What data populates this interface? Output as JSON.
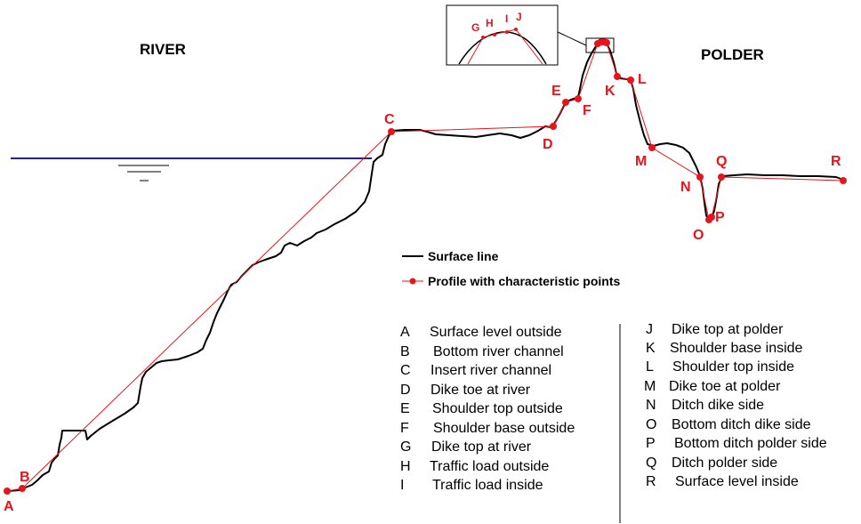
{
  "regions": {
    "river": "RIVER",
    "polder": "POLDER"
  },
  "colors": {
    "surface": "#000000",
    "profile": "#e8141b",
    "water": "#1f1fa8"
  },
  "points": [
    {
      "id": "A"
    },
    {
      "id": "B"
    },
    {
      "id": "C"
    },
    {
      "id": "D"
    },
    {
      "id": "E"
    },
    {
      "id": "F"
    },
    {
      "id": "G"
    },
    {
      "id": "H"
    },
    {
      "id": "I"
    },
    {
      "id": "J"
    },
    {
      "id": "K"
    },
    {
      "id": "L"
    },
    {
      "id": "M"
    },
    {
      "id": "N"
    },
    {
      "id": "O"
    },
    {
      "id": "P"
    },
    {
      "id": "Q"
    },
    {
      "id": "R"
    }
  ],
  "legend": {
    "surface_line": "Surface line",
    "profile": "Profile with characteristic points"
  },
  "key": {
    "left": [
      {
        "letter": "A",
        "text": "Surface level outside"
      },
      {
        "letter": "B",
        "text": "Bottom river channel"
      },
      {
        "letter": "C",
        "text": "Insert river channel"
      },
      {
        "letter": "D",
        "text": "Dike toe at river"
      },
      {
        "letter": "E",
        "text": "Shoulder top outside"
      },
      {
        "letter": "F",
        "text": "Shoulder base outside"
      },
      {
        "letter": "G",
        "text": "Dike top at river"
      },
      {
        "letter": "H",
        "text": "Traffic load outside"
      },
      {
        "letter": "I",
        "text": "Traffic load inside"
      }
    ],
    "right": [
      {
        "letter": "J",
        "text": "Dike top at polder"
      },
      {
        "letter": "K",
        "text": "Shoulder base inside"
      },
      {
        "letter": "L",
        "text": "Shoulder top inside"
      },
      {
        "letter": "M",
        "text": "Dike toe at polder"
      },
      {
        "letter": "N",
        "text": "Ditch dike side"
      },
      {
        "letter": "O",
        "text": "Bottom ditch dike side"
      },
      {
        "letter": "P",
        "text": "Bottom ditch polder side"
      },
      {
        "letter": "Q",
        "text": "Ditch polder side"
      },
      {
        "letter": "R",
        "text": "Surface level inside"
      }
    ]
  }
}
